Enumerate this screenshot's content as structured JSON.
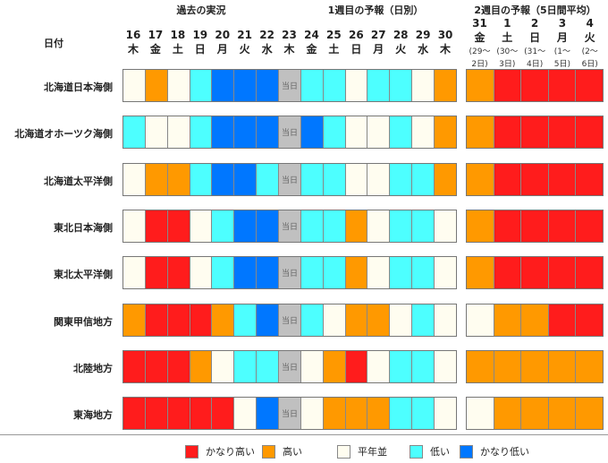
{
  "chart_data": {
    "type": "heatmap",
    "headers": {
      "row_label": "日付",
      "past": "過去の実況",
      "week1": "1週目の予報（日別）",
      "week2": "2週目の予報（5日間平均）"
    },
    "week1_days": [
      {
        "d": "16",
        "w": "木"
      },
      {
        "d": "17",
        "w": "金"
      },
      {
        "d": "18",
        "w": "土"
      },
      {
        "d": "19",
        "w": "日"
      },
      {
        "d": "20",
        "w": "月"
      },
      {
        "d": "21",
        "w": "火"
      },
      {
        "d": "22",
        "w": "水"
      },
      {
        "d": "23",
        "w": "木"
      },
      {
        "d": "24",
        "w": "金"
      },
      {
        "d": "25",
        "w": "土"
      },
      {
        "d": "26",
        "w": "日"
      },
      {
        "d": "27",
        "w": "月"
      },
      {
        "d": "28",
        "w": "火"
      },
      {
        "d": "29",
        "w": "水"
      },
      {
        "d": "30",
        "w": "木"
      }
    ],
    "week2_days": [
      {
        "d": "31",
        "w": "金",
        "r1": "(29～",
        "r2": "2日)"
      },
      {
        "d": "1",
        "w": "土",
        "r1": "(30～",
        "r2": "3日)"
      },
      {
        "d": "2",
        "w": "日",
        "r1": "(31～",
        "r2": "4日)"
      },
      {
        "d": "3",
        "w": "月",
        "r1": "(1～",
        "r2": "5日)"
      },
      {
        "d": "4",
        "w": "火",
        "r1": "(2～",
        "r2": "6日)"
      }
    ],
    "today_label": "当日",
    "categories": {
      "vh": "かなり高い",
      "h": "高い",
      "n": "平年並",
      "l": "低い",
      "vl": "かなり低い"
    },
    "colors": {
      "vh": "#ff1c1c",
      "h": "#ff9900",
      "n": "#fffdf0",
      "l": "#4dffff",
      "vl": "#0077ff",
      "today": "#c0c0c0"
    },
    "legend_order": [
      "vh",
      "h",
      "n",
      "l",
      "vl"
    ],
    "rows": [
      {
        "region": "北海道日本海側",
        "week1": [
          "n",
          "h",
          "n",
          "l",
          "vl",
          "vl",
          "vl",
          "today",
          "l",
          "l",
          "n",
          "l",
          "l",
          "n",
          "h"
        ],
        "week2": [
          "h",
          "vh",
          "vh",
          "vh",
          "vh"
        ]
      },
      {
        "region": "北海道オホーツク海側",
        "week1": [
          "l",
          "n",
          "n",
          "l",
          "vl",
          "vl",
          "vl",
          "today",
          "vl",
          "l",
          "n",
          "n",
          "l",
          "n",
          "h"
        ],
        "week2": [
          "h",
          "vh",
          "vh",
          "vh",
          "vh"
        ]
      },
      {
        "region": "北海道太平洋側",
        "week1": [
          "n",
          "h",
          "h",
          "l",
          "vl",
          "vl",
          "l",
          "today",
          "l",
          "l",
          "n",
          "n",
          "l",
          "l",
          "h"
        ],
        "week2": [
          "h",
          "vh",
          "vh",
          "vh",
          "vh"
        ]
      },
      {
        "region": "東北日本海側",
        "week1": [
          "n",
          "vh",
          "vh",
          "n",
          "l",
          "vl",
          "vl",
          "today",
          "l",
          "l",
          "h",
          "n",
          "l",
          "l",
          "n"
        ],
        "week2": [
          "h",
          "vh",
          "vh",
          "vh",
          "vh"
        ]
      },
      {
        "region": "東北太平洋側",
        "week1": [
          "n",
          "vh",
          "vh",
          "n",
          "l",
          "vl",
          "vl",
          "today",
          "l",
          "l",
          "h",
          "n",
          "l",
          "l",
          "n"
        ],
        "week2": [
          "h",
          "vh",
          "vh",
          "vh",
          "vh"
        ]
      },
      {
        "region": "関東甲信地方",
        "week1": [
          "h",
          "vh",
          "vh",
          "vh",
          "h",
          "l",
          "vl",
          "today",
          "l",
          "n",
          "h",
          "h",
          "n",
          "l",
          "n"
        ],
        "week2": [
          "n",
          "h",
          "h",
          "vh",
          "vh"
        ]
      },
      {
        "region": "北陸地方",
        "week1": [
          "vh",
          "vh",
          "vh",
          "h",
          "n",
          "l",
          "l",
          "today",
          "n",
          "h",
          "vh",
          "n",
          "l",
          "l",
          "n"
        ],
        "week2": [
          "h",
          "h",
          "h",
          "h",
          "h"
        ]
      },
      {
        "region": "東海地方",
        "week1": [
          "vh",
          "vh",
          "vh",
          "vh",
          "vh",
          "n",
          "vl",
          "today",
          "n",
          "h",
          "h",
          "h",
          "l",
          "l",
          "n"
        ],
        "week2": [
          "n",
          "h",
          "h",
          "h",
          "h"
        ]
      }
    ]
  }
}
